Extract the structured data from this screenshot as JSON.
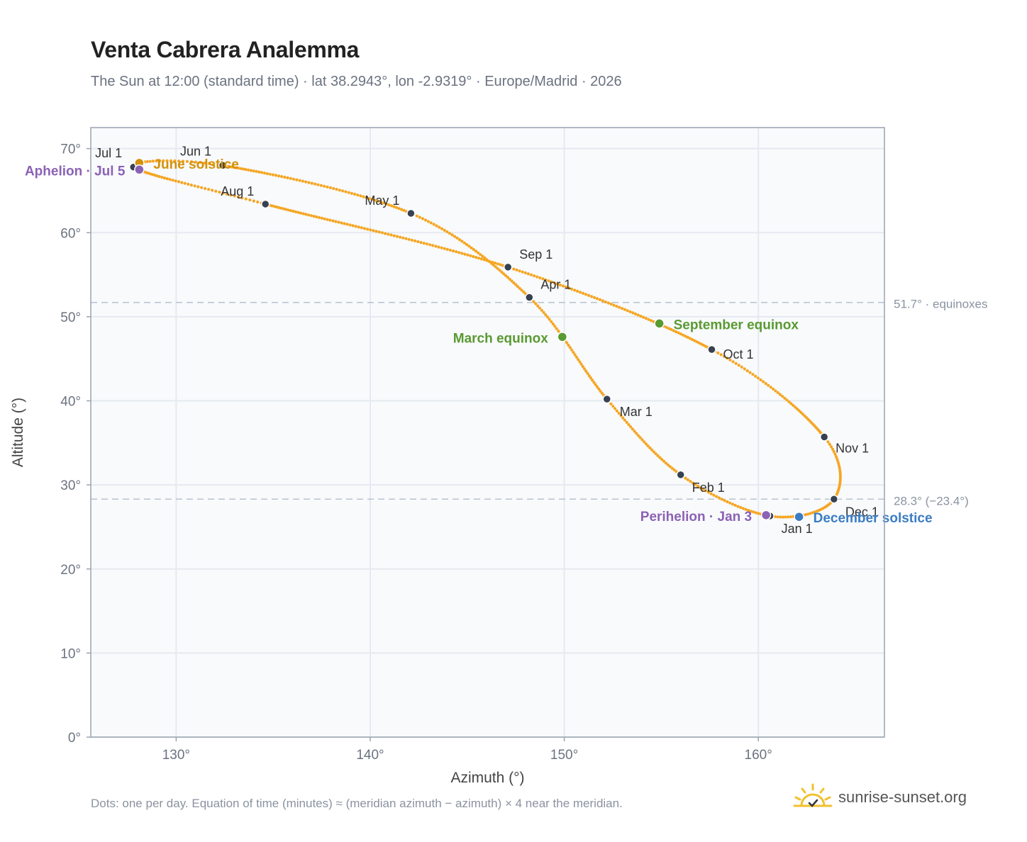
{
  "title": "Venta Cabrera Analemma",
  "subtitle": "The Sun at 12:00 (standard time) · lat 38.2943°, lon -2.9319° · Europe/Madrid · 2026",
  "footnote": "Dots: one per day. Equation of time (minutes) ≈ (meridian azimuth − azimuth) × 4 near the meridian.",
  "brand": {
    "text": "sunrise-sunset.org",
    "icon": "sun-logo-icon"
  },
  "colors": {
    "curve": "#f5a623",
    "month": "#374151",
    "solstice_june": "#d4900a",
    "solstice_dec": "#3b7dc4",
    "equinox": "#5a9a32",
    "apsis": "#8b62b5",
    "refline": "#b8c2cf",
    "grid": "#e5eaf0",
    "plot_bg": "#f8fafc"
  },
  "chart_data": {
    "type": "scatter",
    "xlabel": "Azimuth (°)",
    "ylabel": "Altitude (°)",
    "xlim": [
      125.6,
      166.5
    ],
    "ylim": [
      0,
      72.5
    ],
    "xticks": [
      130,
      140,
      150,
      160
    ],
    "yticks": [
      0,
      10,
      20,
      30,
      40,
      50,
      60,
      70
    ],
    "xtick_labels": [
      "130°",
      "140°",
      "150°",
      "160°"
    ],
    "ytick_labels": [
      "0°",
      "10°",
      "20°",
      "30°",
      "40°",
      "50°",
      "60°",
      "70°"
    ],
    "grid": true,
    "reference_lines": [
      {
        "y": 51.7,
        "label": "51.7° · equinoxes"
      },
      {
        "y": 28.3,
        "label": "28.3° (−23.4°)"
      }
    ],
    "months": [
      {
        "label": "Jan 1",
        "az": 160.6,
        "alt": 26.3
      },
      {
        "label": "Feb 1",
        "az": 156.0,
        "alt": 31.2
      },
      {
        "label": "Mar 1",
        "az": 152.2,
        "alt": 40.2
      },
      {
        "label": "Apr 1",
        "az": 148.2,
        "alt": 52.3
      },
      {
        "label": "May 1",
        "az": 142.1,
        "alt": 62.3
      },
      {
        "label": "Jun 1",
        "az": 132.4,
        "alt": 68.0
      },
      {
        "label": "Jul 1",
        "az": 127.8,
        "alt": 67.8
      },
      {
        "label": "Aug 1",
        "az": 134.6,
        "alt": 63.4
      },
      {
        "label": "Sep 1",
        "az": 147.1,
        "alt": 55.9
      },
      {
        "label": "Oct 1",
        "az": 157.6,
        "alt": 46.1
      },
      {
        "label": "Nov 1",
        "az": 163.4,
        "alt": 35.7
      },
      {
        "label": "Dec 1",
        "az": 163.9,
        "alt": 28.3
      }
    ],
    "events": [
      {
        "label": "June solstice",
        "az": 128.1,
        "alt": 68.3,
        "kind": "solstice_june"
      },
      {
        "label": "December solstice",
        "az": 162.1,
        "alt": 26.2,
        "kind": "solstice_dec"
      },
      {
        "label": "March equinox",
        "az": 149.9,
        "alt": 47.6,
        "kind": "equinox"
      },
      {
        "label": "September equinox",
        "az": 154.9,
        "alt": 49.2,
        "kind": "equinox"
      },
      {
        "label": "Aphelion · Jul 5",
        "az": 128.1,
        "alt": 67.5,
        "kind": "apsis"
      },
      {
        "label": "Perihelion · Jan 3",
        "az": 160.4,
        "alt": 26.4,
        "kind": "apsis"
      }
    ]
  }
}
